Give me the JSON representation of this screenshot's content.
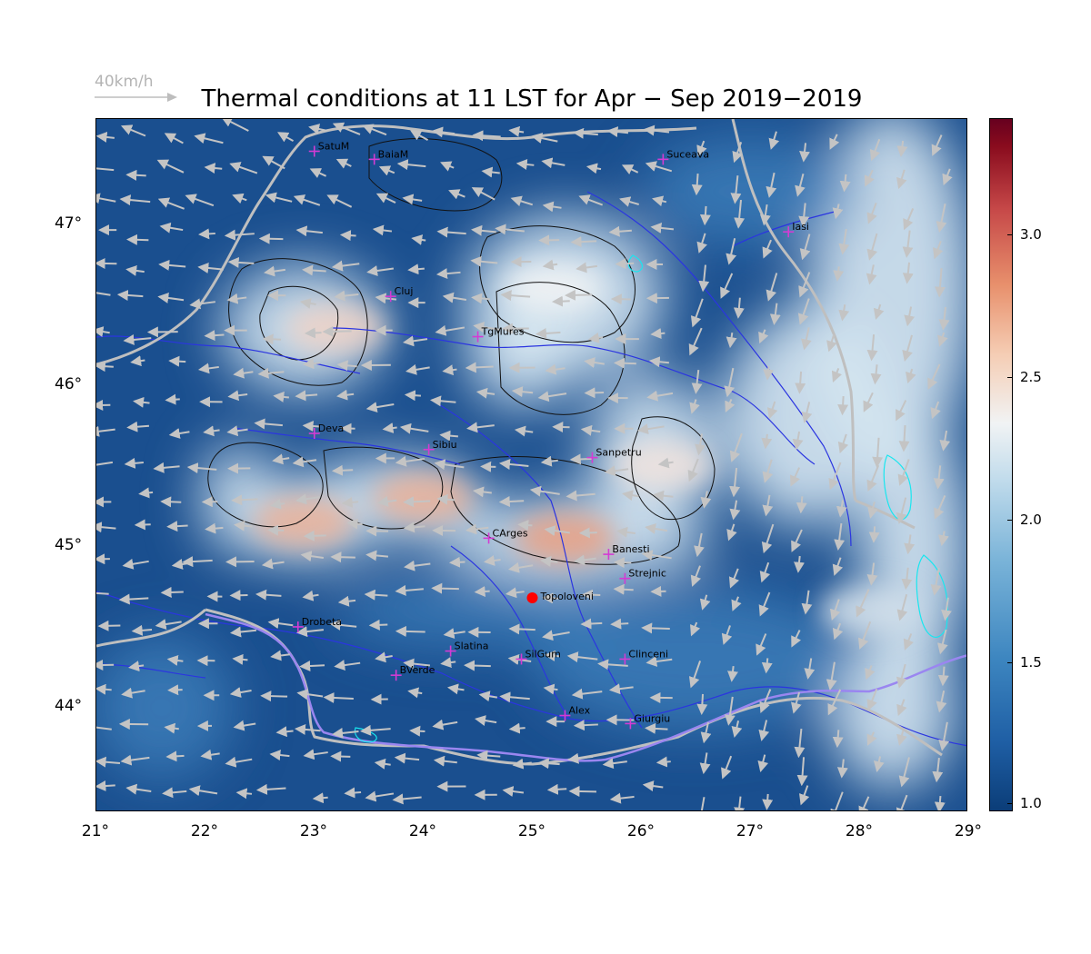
{
  "title": "Thermal conditions at 11 LST for Apr − Sep  2019−2019",
  "scale_arrow_label": "40km/h",
  "x_axis_labels": [
    "21°",
    "22°",
    "23°",
    "24°",
    "25°",
    "26°",
    "27°",
    "28°",
    "29°"
  ],
  "y_axis_labels": [
    "47°",
    "46°",
    "45°",
    "44°"
  ],
  "colorbar": {
    "tick_labels": [
      "3.0",
      "2.5",
      "2.0",
      "1.5",
      "1.0"
    ],
    "min": 1.0,
    "max": 3.4,
    "colors": [
      "#0b3d78",
      "#3d86c0",
      "#f1f3f4",
      "#e8906c",
      "#67001f"
    ]
  },
  "map_extent": {
    "lon": [
      21,
      29
    ],
    "lat": [
      43.35,
      47.65
    ]
  },
  "cities": [
    {
      "name": "SatuM",
      "lon": 23.0,
      "lat": 47.45
    },
    {
      "name": "BaiaM",
      "lon": 23.55,
      "lat": 47.4
    },
    {
      "name": "Suceava",
      "lon": 26.2,
      "lat": 47.4
    },
    {
      "name": "Iasi",
      "lon": 27.35,
      "lat": 46.95
    },
    {
      "name": "Cluj",
      "lon": 23.7,
      "lat": 46.55
    },
    {
      "name": "TgMures",
      "lon": 24.5,
      "lat": 46.3
    },
    {
      "name": "Deva",
      "lon": 23.0,
      "lat": 45.7
    },
    {
      "name": "Sibiu",
      "lon": 24.05,
      "lat": 45.6
    },
    {
      "name": "Sanpetru",
      "lon": 25.55,
      "lat": 45.55
    },
    {
      "name": "CArges",
      "lon": 24.6,
      "lat": 45.05
    },
    {
      "name": "Banesti",
      "lon": 25.7,
      "lat": 44.95
    },
    {
      "name": "Strejnic",
      "lon": 25.85,
      "lat": 44.8
    },
    {
      "name": "Drobeta",
      "lon": 22.85,
      "lat": 44.5
    },
    {
      "name": "Slatina",
      "lon": 24.25,
      "lat": 44.35
    },
    {
      "name": "SilGum",
      "lon": 24.9,
      "lat": 44.3
    },
    {
      "name": "Clinceni",
      "lon": 25.85,
      "lat": 44.3
    },
    {
      "name": "BVerde",
      "lon": 23.75,
      "lat": 44.2
    },
    {
      "name": "Alex",
      "lon": 25.3,
      "lat": 43.95
    },
    {
      "name": "Giurgiu",
      "lon": 25.9,
      "lat": 43.9
    }
  ],
  "highlight_site": {
    "name": "Topoloveni",
    "lon": 25.0,
    "lat": 44.68,
    "color": "#ff0000"
  },
  "thermal_hotspots": [
    {
      "lon": 23.2,
      "lat": 46.35,
      "value": 2.4
    },
    {
      "lon": 24.0,
      "lat": 45.3,
      "value": 2.6
    },
    {
      "lon": 22.9,
      "lat": 45.15,
      "value": 2.6
    },
    {
      "lon": 25.3,
      "lat": 45.05,
      "value": 2.7
    },
    {
      "lon": 25.2,
      "lat": 46.6,
      "value": 2.2
    },
    {
      "lon": 26.2,
      "lat": 45.5,
      "value": 2.3
    },
    {
      "lon": 28.1,
      "lat": 44.6,
      "value": 2.1
    }
  ]
}
